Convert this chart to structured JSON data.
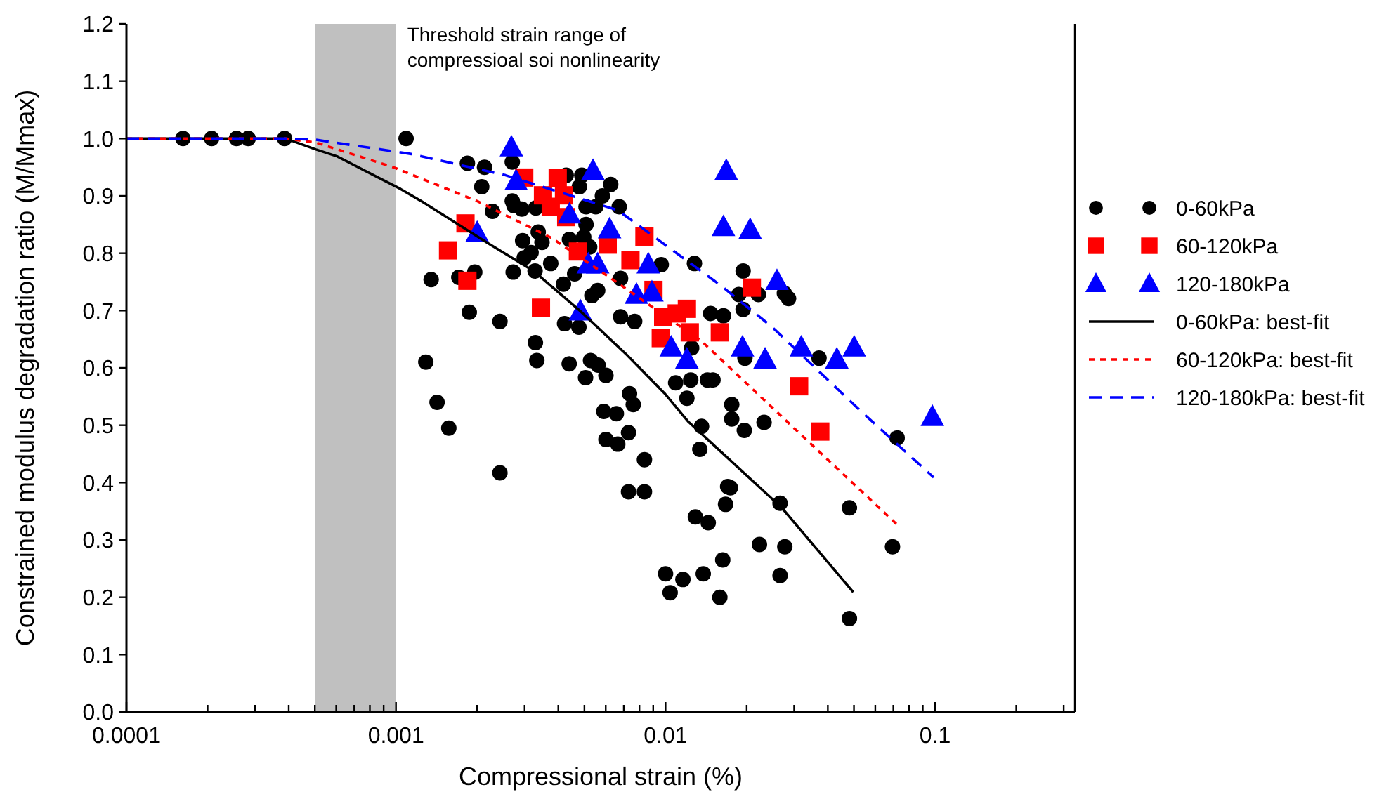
{
  "chart_data": {
    "type": "scatter",
    "xlabel": "Compressional strain (%)",
    "ylabel": "Constrained modulus degradation ratio (M/Mmax)",
    "log": "x",
    "xlim": [
      0.0001,
      0.33
    ],
    "ylim": [
      0,
      1.2
    ],
    "xticks": [
      0.0001,
      {
        "value": 0.0002,
        "label": null
      },
      {
        "value": 0.0003,
        "label": null
      },
      {
        "value": 0.0004,
        "label": null
      },
      {
        "value": 0.0005,
        "label": null
      },
      {
        "value": 0.0006,
        "label": null
      },
      {
        "value": 0.0007,
        "label": null
      },
      {
        "value": 0.0008,
        "label": null
      },
      {
        "value": 0.0009,
        "label": null
      },
      0.001,
      {
        "value": 0.002,
        "label": null
      },
      {
        "value": 0.003,
        "label": null
      },
      {
        "value": 0.004,
        "label": null
      },
      {
        "value": 0.005,
        "label": null
      },
      {
        "value": 0.006,
        "label": null
      },
      {
        "value": 0.007,
        "label": null
      },
      {
        "value": 0.008,
        "label": null
      },
      {
        "value": 0.009,
        "label": null
      },
      0.01,
      {
        "value": 0.02,
        "label": null
      },
      {
        "value": 0.03,
        "label": null
      },
      {
        "value": 0.04,
        "label": null
      },
      {
        "value": 0.05,
        "label": null
      },
      {
        "value": 0.06,
        "label": null
      },
      {
        "value": 0.07,
        "label": null
      },
      {
        "value": 0.08,
        "label": null
      },
      {
        "value": 0.09,
        "label": null
      },
      0.1,
      {
        "value": 0.2,
        "label": null
      },
      {
        "value": 0.3,
        "label": null
      }
    ],
    "yticks": [
      {
        "value": 0,
        "label": "0.0"
      },
      0.1,
      0.2,
      0.3,
      0.4,
      0.5,
      0.6,
      0.7,
      0.8,
      0.9,
      {
        "value": 1,
        "label": "1.0"
      },
      1.1,
      1.2
    ],
    "grid": false,
    "legend": "right",
    "bands": [
      {
        "axis": "x",
        "from": 0.0005,
        "to": 0.001,
        "color": "#c0c0c0"
      }
    ],
    "annotations": [
      {
        "text": "Threshold strain range of\ncompressioal soi nonlinearity",
        "x": 0.001,
        "y": 1.17
      }
    ],
    "series": [
      {
        "name": "0-60kPa",
        "marker": "circle",
        "color": "#000000",
        "x": [
          0.000162,
          0.000207,
          0.000256,
          0.000283,
          0.000386,
          0.00109,
          0.00184,
          0.00213,
          0.00208,
          0.00228,
          0.00135,
          0.00171,
          0.00196,
          0.00187,
          0.00243,
          0.00129,
          0.00142,
          0.00157,
          0.00243,
          0.0027,
          0.0027,
          0.00274,
          0.00293,
          0.0033,
          0.00428,
          0.00479,
          0.00489,
          0.00626,
          0.00583,
          0.00507,
          0.00551,
          0.00673,
          0.00507,
          0.00497,
          0.0044,
          0.00523,
          0.00295,
          0.00337,
          0.00348,
          0.00317,
          0.00299,
          0.00272,
          0.00328,
          0.00375,
          0.0046,
          0.00418,
          0.00533,
          0.0056,
          0.00681,
          0.00964,
          0.0128,
          0.00422,
          0.00477,
          0.00681,
          0.00768,
          0.0125,
          0.0147,
          0.0164,
          0.00329,
          0.00333,
          0.00439,
          0.00527,
          0.00562,
          0.00505,
          0.00601,
          0.0109,
          0.0124,
          0.0143,
          0.015,
          0.012,
          0.00735,
          0.00759,
          0.0059,
          0.00657,
          0.00601,
          0.00665,
          0.00729,
          0.00835,
          0.00729,
          0.00835,
          0.0136,
          0.0134,
          0.017,
          0.0167,
          0.0129,
          0.0144,
          0.0163,
          0.01,
          0.0116,
          0.0138,
          0.0104,
          0.0159,
          0.0176,
          0.0176,
          0.0196,
          0.0232,
          0.0174,
          0.0223,
          0.0277,
          0.0266,
          0.0481,
          0.0723,
          0.0695,
          0.0481,
          0.0266,
          0.0194,
          0.0187,
          0.0221,
          0.0276,
          0.0286,
          0.0194,
          0.0197,
          0.0371
        ],
        "values": [
          1.0,
          1.0,
          1.0,
          1.0,
          1.0,
          1.0,
          0.957,
          0.95,
          0.916,
          0.873,
          0.754,
          0.758,
          0.767,
          0.697,
          0.681,
          0.61,
          0.54,
          0.495,
          0.417,
          0.959,
          0.891,
          0.883,
          0.877,
          0.879,
          0.936,
          0.916,
          0.936,
          0.92,
          0.9,
          0.881,
          0.881,
          0.881,
          0.85,
          0.828,
          0.824,
          0.811,
          0.822,
          0.837,
          0.819,
          0.801,
          0.792,
          0.767,
          0.769,
          0.782,
          0.764,
          0.746,
          0.726,
          0.735,
          0.756,
          0.78,
          0.782,
          0.677,
          0.671,
          0.689,
          0.681,
          0.635,
          0.695,
          0.691,
          0.644,
          0.613,
          0.607,
          0.613,
          0.605,
          0.583,
          0.587,
          0.574,
          0.579,
          0.579,
          0.579,
          0.547,
          0.555,
          0.536,
          0.524,
          0.52,
          0.475,
          0.467,
          0.487,
          0.44,
          0.384,
          0.384,
          0.498,
          0.458,
          0.393,
          0.362,
          0.34,
          0.33,
          0.265,
          0.241,
          0.231,
          0.241,
          0.208,
          0.2,
          0.536,
          0.511,
          0.491,
          0.505,
          0.391,
          0.292,
          0.288,
          0.364,
          0.356,
          0.478,
          0.288,
          0.163,
          0.238,
          0.769,
          0.728,
          0.728,
          0.73,
          0.721,
          0.702,
          0.617,
          0.617
        ]
      },
      {
        "name": "60-120kPa",
        "marker": "square",
        "color": "#ff0000",
        "x": [
          0.00181,
          0.00156,
          0.00184,
          0.00299,
          0.00398,
          0.00351,
          0.0042,
          0.00375,
          0.00428,
          0.00473,
          0.0061,
          0.00741,
          0.00835,
          0.00902,
          0.00345,
          0.0098,
          0.011,
          0.012,
          0.0096,
          0.0123,
          0.0159,
          0.0209,
          0.0313,
          0.0375
        ],
        "values": [
          0.852,
          0.805,
          0.752,
          0.932,
          0.931,
          0.901,
          0.901,
          0.881,
          0.863,
          0.803,
          0.815,
          0.788,
          0.829,
          0.736,
          0.705,
          0.689,
          0.695,
          0.703,
          0.652,
          0.662,
          0.662,
          0.74,
          0.568,
          0.489
        ]
      },
      {
        "name": "120-180kPa",
        "marker": "triangle",
        "color": "#0000ff",
        "x": [
          0.002,
          0.00268,
          0.00279,
          0.00538,
          0.0044,
          0.0062,
          0.00863,
          0.00517,
          0.0056,
          0.0078,
          0.0089,
          0.00483,
          0.0105,
          0.012,
          0.0168,
          0.0164,
          0.0206,
          0.0259,
          0.0193,
          0.0234,
          0.0319,
          0.0432,
          0.0501,
          0.0977
        ],
        "values": [
          0.836,
          0.985,
          0.926,
          0.944,
          0.868,
          0.842,
          0.781,
          0.781,
          0.781,
          0.728,
          0.732,
          0.699,
          0.636,
          0.615,
          0.944,
          0.846,
          0.841,
          0.752,
          0.636,
          0.615,
          0.636,
          0.615,
          0.636,
          0.515
        ]
      },
      {
        "name": "0-60kPa: best-fit",
        "type": "line",
        "marker": "none",
        "line_style": "solid",
        "color": "#000000",
        "x": [
          0.0001,
          0.00039,
          0.000505,
          0.000604,
          0.00104,
          0.00124,
          0.00217,
          0.00324,
          0.00483,
          0.00721,
          0.0099,
          0.0121,
          0.027,
          0.0497
        ],
        "values": [
          1.0,
          1.0,
          0.981,
          0.969,
          0.912,
          0.891,
          0.819,
          0.769,
          0.699,
          0.622,
          0.556,
          0.507,
          0.356,
          0.209
        ]
      },
      {
        "name": "60-120kPa: best-fit",
        "type": "line",
        "marker": "none",
        "line_style": "dotted",
        "color": "#ff0000",
        "x": [
          0.0001,
          0.00039,
          0.000505,
          0.000977,
          0.002,
          0.0038,
          0.00665,
          0.01365,
          0.027,
          0.0718
        ],
        "values": [
          1.0,
          1.0,
          0.993,
          0.95,
          0.891,
          0.826,
          0.748,
          0.646,
          0.515,
          0.328
        ]
      },
      {
        "name": "120-180kPa: best-fit",
        "type": "line",
        "marker": "none",
        "line_style": "dashed",
        "color": "#0000ff",
        "x": [
          0.0001,
          0.00039,
          0.000505,
          0.00114,
          0.00255,
          0.00665,
          0.016,
          0.0249,
          0.0532,
          0.0988
        ],
        "values": [
          1.0,
          1.0,
          0.998,
          0.973,
          0.936,
          0.875,
          0.744,
          0.671,
          0.524,
          0.409
        ]
      }
    ]
  }
}
